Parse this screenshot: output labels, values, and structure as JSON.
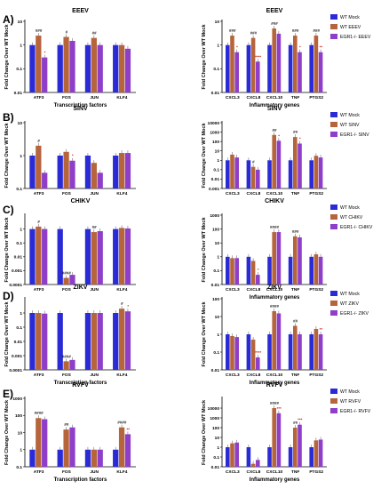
{
  "figure": {
    "ylabel": "Fold Change Over WT Mock"
  },
  "colors": {
    "mock": "#2b2bd6",
    "infected": "#b5643c",
    "egr1": "#8e3ec8",
    "stat_red": "#d42a2a"
  },
  "chart_data": [
    {
      "type": "bar",
      "panel": "A)",
      "title": "EEEV",
      "xlabel": "Transcription factors",
      "ylabel": "Fold Change Over WT Mock",
      "yscale": "log",
      "ylim": [
        0.01,
        10
      ],
      "yticks": [
        "0.01",
        "0.1",
        "1",
        "10"
      ],
      "categories": [
        "ATF3",
        "FOS",
        "JUN",
        "KLF4"
      ],
      "series": [
        {
          "values": [
            1,
            1,
            1,
            1
          ]
        },
        {
          "values": [
            2.5,
            2.2,
            2.0,
            1.0
          ]
        },
        {
          "values": [
            0.3,
            1.5,
            1.0,
            0.7
          ]
        }
      ],
      "annotations": [
        "###",
        "#",
        "##",
        "",
        "*",
        "",
        "",
        ""
      ]
    },
    {
      "type": "bar",
      "panel": "",
      "title": "EEEV",
      "xlabel": "Inflammatory genes",
      "ylabel": "Fold Change Over WT Mock",
      "yscale": "log",
      "ylim": [
        0.01,
        10
      ],
      "yticks": [
        "0.01",
        "0.1",
        "1",
        "10"
      ],
      "categories": [
        "CXCL3",
        "CXCL8",
        "CXCL10",
        "TNF",
        "PTGS2"
      ],
      "series": [
        {
          "name": "WT Mock",
          "values": [
            1,
            1,
            1,
            1,
            1
          ]
        },
        {
          "name": "WT EEEV",
          "values": [
            2.5,
            2.0,
            5.0,
            2.5,
            2.5
          ]
        },
        {
          "name": "EGR1-/- EEEV",
          "values": [
            0.5,
            0.2,
            3.0,
            0.5,
            0.5
          ]
        }
      ],
      "annotations": [
        "###",
        "###",
        "###",
        "###",
        "###",
        "*",
        "****",
        "",
        "*",
        "**"
      ]
    },
    {
      "type": "bar",
      "panel": "B)",
      "title": "SINV",
      "xlabel": "",
      "ylabel": "Fold Change Over WT Mock",
      "yscale": "log",
      "ylim": [
        0.1,
        10
      ],
      "yticks": [
        "0.1",
        "1",
        "10"
      ],
      "categories": [
        "ATF3",
        "FOS",
        "JUN",
        "KLF4"
      ],
      "series": [
        {
          "values": [
            1,
            1,
            1,
            1
          ]
        },
        {
          "values": [
            2.0,
            1.3,
            0.6,
            1.2
          ]
        },
        {
          "values": [
            0.3,
            0.7,
            0.3,
            1.2
          ]
        }
      ],
      "annotations": [
        "#",
        "",
        "",
        "",
        "",
        "*",
        "",
        ""
      ]
    },
    {
      "type": "bar",
      "panel": "",
      "title": "SINV",
      "xlabel": "",
      "ylabel": "Fold Change Over WT Mock",
      "yscale": "log",
      "ylim": [
        0.001,
        10000
      ],
      "yticks": [
        "0.001",
        "0.01",
        "0.1",
        "1",
        "10",
        "100",
        "1000",
        "10000"
      ],
      "categories": [
        "CXCL3",
        "CXCL8",
        "CXCL10",
        "TNF",
        "PTGS2"
      ],
      "series": [
        {
          "name": "WT Mock",
          "values": [
            1,
            1,
            1,
            1,
            1
          ]
        },
        {
          "name": "WT SINV",
          "values": [
            4.0,
            0.2,
            500,
            300,
            3.0
          ]
        },
        {
          "name": "EGR1-/- SINV",
          "values": [
            2.0,
            0.1,
            120,
            60,
            2.0
          ]
        }
      ],
      "annotations": [
        "",
        "#",
        "##",
        "##",
        "",
        "",
        "",
        "*",
        "*",
        ""
      ]
    },
    {
      "type": "bar",
      "panel": "C)",
      "title": "CHIKV",
      "xlabel": "",
      "ylabel": "Fold Change Over WT Mock",
      "yscale": "log",
      "ylim": [
        0.0001,
        10
      ],
      "yticks": [
        "0.0001",
        "0.001",
        "0.01",
        "0.1",
        "1"
      ],
      "categories": [
        "ATF3",
        "FOS",
        "JUN",
        "KLF4"
      ],
      "series": [
        {
          "values": [
            1,
            1,
            1,
            1
          ]
        },
        {
          "values": [
            1.5,
            0.0003,
            0.6,
            1.2
          ]
        },
        {
          "values": [
            1.0,
            0.0005,
            0.7,
            1.1
          ]
        }
      ],
      "annotations": [
        "#",
        "####",
        "##",
        "",
        "",
        "",
        "",
        ""
      ]
    },
    {
      "type": "bar",
      "panel": "",
      "title": "CHIKV",
      "xlabel": "Inflammatory genes",
      "ylabel": "Fold Change Over WT Mock",
      "yscale": "log",
      "ylim": [
        0.01,
        1000
      ],
      "yticks": [
        "0.01",
        "0.1",
        "1",
        "10",
        "100",
        "1000"
      ],
      "categories": [
        "CXCL3",
        "CXCL8",
        "CXCL10",
        "TNF",
        "PTGS2"
      ],
      "series": [
        {
          "name": "WT Mock",
          "values": [
            1,
            1,
            1,
            1,
            1
          ]
        },
        {
          "name": "WT CHIKV",
          "values": [
            0.8,
            0.5,
            60,
            30,
            1.5
          ]
        },
        {
          "name": "EGR1-/- CHIKV",
          "values": [
            0.8,
            0.05,
            60,
            25,
            1.0
          ]
        }
      ],
      "annotations": [
        "",
        "",
        "####",
        "###",
        "",
        "",
        "*",
        "",
        "",
        ""
      ]
    },
    {
      "type": "bar",
      "panel": "D)",
      "title": "ZIKV",
      "xlabel": "Transcription factors",
      "ylabel": "Fold Change Over WT Mock",
      "yscale": "log",
      "ylim": [
        0.0001,
        10
      ],
      "yticks": [
        "0.0001",
        "0.001",
        "0.01",
        "0.1",
        "1"
      ],
      "categories": [
        "ATF3",
        "FOS",
        "JUN",
        "KLF4"
      ],
      "series": [
        {
          "values": [
            1,
            1,
            1,
            1
          ]
        },
        {
          "values": [
            1.0,
            0.0004,
            1.0,
            2.0
          ]
        },
        {
          "values": [
            0.9,
            0.0005,
            1.0,
            1.3
          ]
        }
      ],
      "annotations": [
        "",
        "####",
        "",
        "#",
        "",
        "",
        "",
        "*"
      ]
    },
    {
      "type": "bar",
      "panel": "",
      "title": "ZIKV",
      "xlabel": "Inflammatory genes",
      "ylabel": "Fold Change Over WT Mock",
      "yscale": "log",
      "ylim": [
        0.01,
        100
      ],
      "yticks": [
        "0.01",
        "0.1",
        "1",
        "10",
        "100"
      ],
      "categories": [
        "CXCL3",
        "CXCL8",
        "CXCL10",
        "TNF",
        "PTGS2"
      ],
      "series": [
        {
          "name": "WT Mock",
          "values": [
            1,
            1,
            1,
            1,
            1
          ]
        },
        {
          "name": "WT ZIKV",
          "values": [
            0.8,
            0.5,
            20,
            3.0,
            2.0
          ]
        },
        {
          "name": "EGR1-/- ZIKV",
          "values": [
            0.7,
            0.05,
            15,
            1.0,
            1.0
          ]
        }
      ],
      "annotations": [
        "",
        "",
        "####",
        "##",
        "",
        "",
        "****",
        "",
        "",
        "**"
      ]
    },
    {
      "type": "bar",
      "panel": "E)",
      "title": "RVFV",
      "xlabel": "Transcription factors",
      "ylabel": "Fold Change Over WT Mock",
      "yscale": "log",
      "ylim": [
        0.1,
        1000
      ],
      "yticks": [
        "0.1",
        "1",
        "10",
        "100",
        "1000"
      ],
      "categories": [
        "ATF3",
        "FOS",
        "JUN",
        "KLF4"
      ],
      "series": [
        {
          "values": [
            1,
            1,
            1,
            1
          ]
        },
        {
          "values": [
            70,
            15,
            1.0,
            20
          ]
        },
        {
          "values": [
            60,
            20,
            1.0,
            8
          ]
        }
      ],
      "annotations": [
        "####",
        "##",
        "",
        "####",
        "",
        "",
        "",
        "**"
      ]
    },
    {
      "type": "bar",
      "panel": "",
      "title": "RVFV",
      "xlabel": "Inflammatory genes",
      "ylabel": "Fold Change Over WT Mock",
      "yscale": "log",
      "ylim": [
        0.01,
        100000
      ],
      "yticks": [
        "0.01",
        "0.1",
        "1",
        "10",
        "100",
        "1000",
        "10000"
      ],
      "categories": [
        "CXCL3",
        "CXCL8",
        "CXCL10",
        "TNF",
        "PTGS2"
      ],
      "series": [
        {
          "name": "WT Mock",
          "values": [
            1,
            1,
            1,
            1,
            1
          ]
        },
        {
          "name": "WT RVFV",
          "values": [
            2.5,
            0.02,
            10000,
            100,
            5
          ]
        },
        {
          "name": "EGR1-/- RVFV",
          "values": [
            3.0,
            0.05,
            3000,
            200,
            6
          ]
        }
      ],
      "annotations": [
        "",
        "",
        "####",
        "##",
        "",
        "",
        "",
        "***",
        "***",
        ""
      ]
    }
  ]
}
